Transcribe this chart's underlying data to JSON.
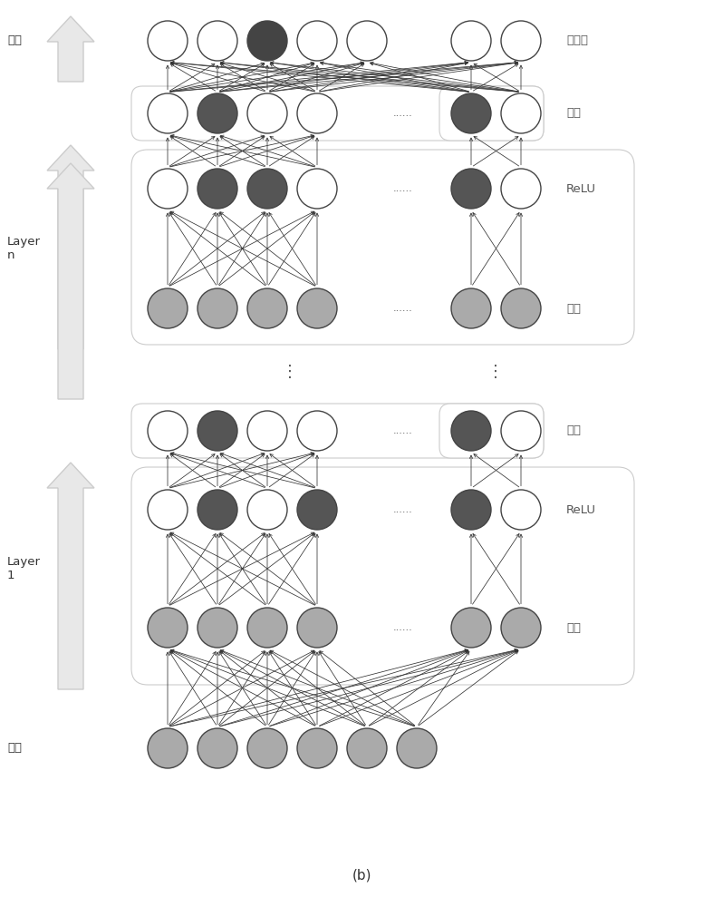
{
  "fig_width": 7.98,
  "fig_height": 10.0,
  "bg_color": "#ffffff",
  "node_edge_color": "#444444",
  "arrow_color": "#222222",
  "box_edge_color": "#bbbbbb",
  "box_fill": "#ffffff",
  "arrow_shaft_color": "#cccccc",
  "arrow_face_color": "#e8e8e8",
  "node_white": "#ffffff",
  "node_dark": "#555555",
  "node_medium": "#aaaaaa",
  "node_input_gray": "#aaaaaa",
  "title": "(b)",
  "label_output": "输出",
  "label_input": "输入",
  "label_layer_n": "Layer\nn",
  "label_layer_1": "Layer\n1",
  "label_quanlianji": "全连接",
  "label_chihua_top": "池化",
  "label_relu_n": "ReLU",
  "label_juanji_n": "卷积",
  "label_chihua_1": "池化",
  "label_relu_1": "ReLU",
  "label_juanji_1": "卷积",
  "dots": "......",
  "vdots": "⋮"
}
